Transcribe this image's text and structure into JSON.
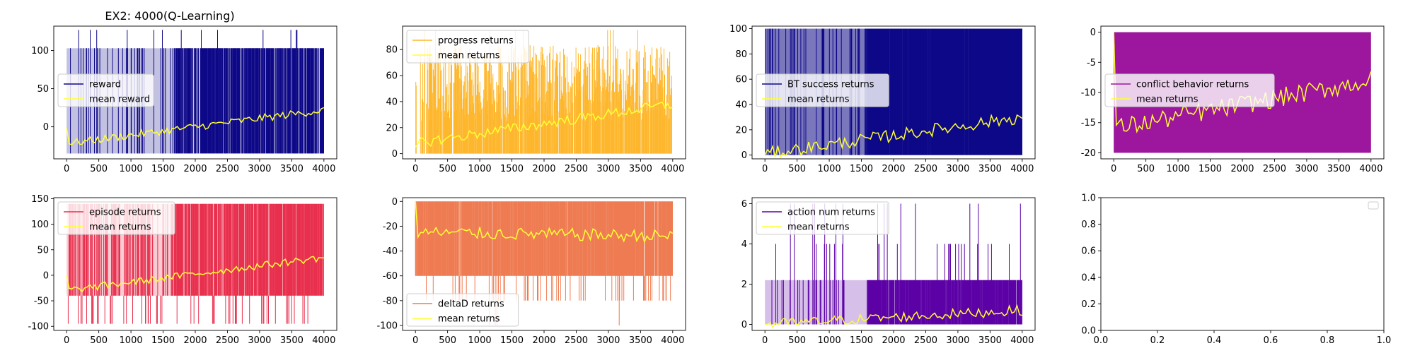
{
  "figure": {
    "title": "EX2: 4000(Q-Learning)"
  },
  "chart_data": [
    {
      "type": "line",
      "x_ticks": [
        0,
        500,
        1000,
        1500,
        2000,
        2500,
        3000,
        3500,
        4000
      ],
      "xlim": [
        -200,
        4200
      ],
      "y_ticks": [
        0,
        50,
        100
      ],
      "ylim": [
        -42,
        132
      ],
      "noise": {
        "base": -35,
        "cap": 103,
        "spike": 127,
        "dense_from": 1650,
        "cap_prob_early": 0.12,
        "cap_prob_late": 0.7
      },
      "mean_trend": {
        "start": -2,
        "early": -22,
        "end": 22,
        "jitter": 5
      },
      "legend": {
        "location": "center-left"
      },
      "series": [
        {
          "name": "reward",
          "color": "#0d0887"
        },
        {
          "name": "mean reward",
          "color": "#ffff33"
        }
      ]
    },
    {
      "type": "line",
      "x_ticks": [
        0,
        500,
        1000,
        1500,
        2000,
        2500,
        3000,
        3500,
        4000
      ],
      "xlim": [
        -200,
        4200
      ],
      "y_ticks": [
        0,
        20,
        40,
        60,
        80
      ],
      "ylim": [
        -4,
        98
      ],
      "noise": {
        "base": 0,
        "cap": 84,
        "spike": 95,
        "dense_from": 200,
        "cap_prob_early": 0.5,
        "cap_prob_late": 0.85,
        "spread": true
      },
      "mean_trend": {
        "start": 5,
        "early": 8,
        "end": 38,
        "jitter": 4
      },
      "legend": {
        "location": "top-left"
      },
      "series": [
        {
          "name": "progress returns",
          "color": "#feb72d"
        },
        {
          "name": "mean returns",
          "color": "#ffff33"
        }
      ]
    },
    {
      "type": "line",
      "x_ticks": [
        0,
        500,
        1000,
        1500,
        2000,
        2500,
        3000,
        3500,
        4000
      ],
      "xlim": [
        -200,
        4200
      ],
      "y_ticks": [
        0,
        20,
        40,
        60,
        80,
        100
      ],
      "ylim": [
        -3,
        102
      ],
      "noise": {
        "base": 0,
        "cap": 100,
        "spike": 100,
        "dense_from": 1600,
        "cap_prob_early": 0.15,
        "cap_prob_late": 0.97
      },
      "mean_trend": {
        "start": 0,
        "early": 1,
        "end": 30,
        "jitter": 5
      },
      "legend": {
        "location": "center-left"
      },
      "series": [
        {
          "name": "BT success returns",
          "color": "#0d0887"
        },
        {
          "name": "mean returns",
          "color": "#ffff33"
        }
      ]
    },
    {
      "type": "line",
      "x_ticks": [
        0,
        500,
        1000,
        1500,
        2000,
        2500,
        3000,
        3500,
        4000
      ],
      "xlim": [
        -200,
        4200
      ],
      "y_ticks": [
        -20,
        -15,
        -10,
        -5,
        0
      ],
      "ylim": [
        -21,
        1
      ],
      "noise": {
        "base": -20,
        "cap": 0,
        "spike": 0,
        "dense_from": 0,
        "cap_prob_early": 1,
        "cap_prob_late": 1,
        "solid": true
      },
      "mean_trend": {
        "start": 0,
        "early": -16,
        "end": -8,
        "jitter": 1.6
      },
      "legend": {
        "location": "center-left"
      },
      "series": [
        {
          "name": "conflict behavior returns",
          "color": "#9c179e"
        },
        {
          "name": "mean returns",
          "color": "#ffff33"
        }
      ]
    },
    {
      "type": "line",
      "x_ticks": [
        0,
        500,
        1000,
        1500,
        2000,
        2500,
        3000,
        3500,
        4000
      ],
      "xlim": [
        -200,
        4200
      ],
      "y_ticks": [
        -100,
        -50,
        0,
        50,
        100,
        150
      ],
      "ylim": [
        -108,
        152
      ],
      "noise": {
        "base": -40,
        "cap": 140,
        "spike": 140,
        "dense_from": 1650,
        "cap_prob_early": 0.3,
        "cap_prob_late": 0.75,
        "dip": -95
      },
      "mean_trend": {
        "start": 0,
        "early": -30,
        "end": 35,
        "jitter": 7
      },
      "legend": {
        "location": "top-left"
      },
      "series": [
        {
          "name": "episode returns",
          "color": "#e8304e"
        },
        {
          "name": "mean returns",
          "color": "#ffff33"
        }
      ]
    },
    {
      "type": "line",
      "x_ticks": [
        0,
        500,
        1000,
        1500,
        2000,
        2500,
        3000,
        3500,
        4000
      ],
      "xlim": [
        -200,
        4200
      ],
      "y_ticks": [
        -100,
        -80,
        -60,
        -40,
        -20,
        0
      ],
      "ylim": [
        -104,
        3
      ],
      "noise": {
        "base": -60,
        "cap": 0,
        "spike": 0,
        "dense_from": 0,
        "cap_prob_early": 0.9,
        "cap_prob_late": 0.9,
        "dip": -80,
        "deep_dip": -100
      },
      "mean_trend": {
        "start": 0,
        "early": -25,
        "end": -28,
        "jitter": 5
      },
      "legend": {
        "location": "bottom-left"
      },
      "series": [
        {
          "name": "deltaD returns",
          "color": "#ee7b51"
        },
        {
          "name": "mean returns",
          "color": "#ffff33"
        }
      ]
    },
    {
      "type": "line",
      "x_ticks": [
        0,
        500,
        1000,
        1500,
        2000,
        2500,
        3000,
        3500,
        4000
      ],
      "xlim": [
        -200,
        4200
      ],
      "y_ticks": [
        0,
        2,
        4,
        6
      ],
      "ylim": [
        -0.3,
        6.3
      ],
      "noise": {
        "base": 0,
        "cap": 2.2,
        "spike": 6,
        "dense_from": 1600,
        "cap_prob_early": 0.1,
        "cap_prob_late": 0.9,
        "mid": 4
      },
      "mean_trend": {
        "start": 0,
        "early": 0,
        "end": 0.7,
        "jitter": 0.25
      },
      "legend": {
        "location": "top-left"
      },
      "series": [
        {
          "name": "action num returns",
          "color": "#5c01a6"
        },
        {
          "name": "mean returns",
          "color": "#ffff33"
        }
      ]
    },
    {
      "type": "line",
      "x_ticks": [
        0.0,
        0.2,
        0.4,
        0.6,
        0.8,
        1.0
      ],
      "xlim": [
        0,
        1
      ],
      "y_ticks": [
        0.0,
        0.2,
        0.4,
        0.6,
        0.8,
        1.0
      ],
      "ylim": [
        0,
        1
      ],
      "empty": true,
      "legend": {
        "location": "top-right"
      },
      "series": []
    }
  ]
}
